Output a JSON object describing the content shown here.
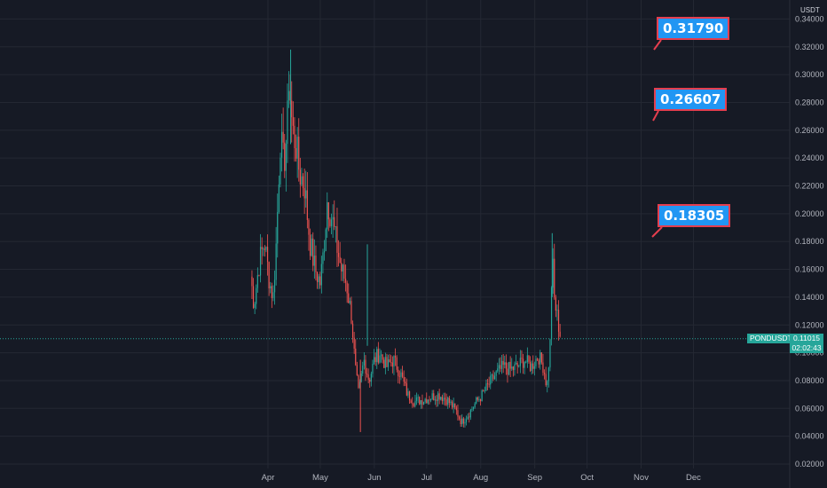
{
  "chart_data": {
    "type": "candlestick",
    "symbol": "PONDUSDT",
    "unit": "USDT",
    "y_ticks": [
      "0.02000",
      "0.04000",
      "0.06000",
      "0.08000",
      "0.10000",
      "0.12000",
      "0.14000",
      "0.16000",
      "0.18000",
      "0.20000",
      "0.22000",
      "0.24000",
      "0.26000",
      "0.28000",
      "0.30000",
      "0.32000",
      "0.34000"
    ],
    "x_ticks": [
      "Apr",
      "May",
      "Jun",
      "Jul",
      "Aug",
      "Sep",
      "Oct",
      "Nov",
      "Dec"
    ],
    "last_price": "0.11015",
    "countdown": "02:02:43",
    "targets": [
      "0.31790",
      "0.26607",
      "0.18305"
    ],
    "price_path": [
      [
        "2021-03-22",
        0.155
      ],
      [
        "2021-03-24",
        0.135
      ],
      [
        "2021-03-27",
        0.165
      ],
      [
        "2021-03-30",
        0.18
      ],
      [
        "2021-04-02",
        0.15
      ],
      [
        "2021-04-04",
        0.14
      ],
      [
        "2021-04-06",
        0.185
      ],
      [
        "2021-04-08",
        0.255
      ],
      [
        "2021-04-10",
        0.235
      ],
      [
        "2021-04-12",
        0.26
      ],
      [
        "2021-04-13",
        0.3
      ],
      [
        "2021-04-15",
        0.26
      ],
      [
        "2021-04-17",
        0.25
      ],
      [
        "2021-04-19",
        0.23
      ],
      [
        "2021-04-22",
        0.22
      ],
      [
        "2021-04-25",
        0.18
      ],
      [
        "2021-04-28",
        0.16
      ],
      [
        "2021-05-01",
        0.15
      ],
      [
        "2021-05-03",
        0.175
      ],
      [
        "2021-05-05",
        0.21
      ],
      [
        "2021-05-08",
        0.195
      ],
      [
        "2021-05-10",
        0.18
      ],
      [
        "2021-05-13",
        0.16
      ],
      [
        "2021-05-16",
        0.15
      ],
      [
        "2021-05-19",
        0.125
      ],
      [
        "2021-05-21",
        0.09
      ],
      [
        "2021-05-23",
        0.07
      ],
      [
        "2021-05-26",
        0.095
      ],
      [
        "2021-05-29",
        0.08
      ],
      [
        "2021-06-01",
        0.095
      ],
      [
        "2021-06-04",
        0.1
      ],
      [
        "2021-06-08",
        0.09
      ],
      [
        "2021-06-12",
        0.095
      ],
      [
        "2021-06-16",
        0.085
      ],
      [
        "2021-06-20",
        0.07
      ],
      [
        "2021-06-24",
        0.065
      ],
      [
        "2021-06-28",
        0.066
      ],
      [
        "2021-07-03",
        0.068
      ],
      [
        "2021-07-08",
        0.07
      ],
      [
        "2021-07-13",
        0.066
      ],
      [
        "2021-07-18",
        0.058
      ],
      [
        "2021-07-21",
        0.05
      ],
      [
        "2021-07-25",
        0.056
      ],
      [
        "2021-07-29",
        0.064
      ],
      [
        "2021-08-02",
        0.07
      ],
      [
        "2021-08-06",
        0.078
      ],
      [
        "2021-08-10",
        0.085
      ],
      [
        "2021-08-14",
        0.09
      ],
      [
        "2021-08-18",
        0.088
      ],
      [
        "2021-08-22",
        0.09
      ],
      [
        "2021-08-26",
        0.095
      ],
      [
        "2021-08-30",
        0.09
      ],
      [
        "2021-09-03",
        0.098
      ],
      [
        "2021-09-06",
        0.09
      ],
      [
        "2021-09-08",
        0.075
      ],
      [
        "2021-09-10",
        0.11
      ],
      [
        "2021-09-11",
        0.175
      ],
      [
        "2021-09-12",
        0.14
      ],
      [
        "2021-09-14",
        0.125
      ],
      [
        "2021-09-16",
        0.11
      ]
    ]
  },
  "colors": {
    "up": "#26a69a",
    "down": "#ef5350",
    "background": "#161a25",
    "grid": "#242833",
    "callout_fill": "#2196f3",
    "callout_border": "#e53e4e"
  }
}
